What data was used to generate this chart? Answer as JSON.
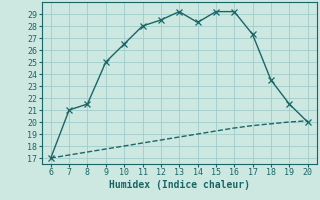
{
  "xlabel": "Humidex (Indice chaleur)",
  "x": [
    6,
    7,
    8,
    9,
    10,
    11,
    12,
    13,
    14,
    15,
    16,
    17,
    18,
    19,
    20
  ],
  "y_main": [
    17.0,
    21.0,
    21.5,
    25.0,
    26.5,
    28.0,
    28.5,
    29.2,
    28.3,
    29.2,
    29.2,
    27.3,
    23.5,
    21.5,
    20.0
  ],
  "y_ref": [
    17.0,
    17.25,
    17.5,
    17.75,
    18.0,
    18.25,
    18.5,
    18.75,
    19.0,
    19.25,
    19.5,
    19.7,
    19.85,
    20.0,
    20.1
  ],
  "xlim": [
    5.5,
    20.5
  ],
  "ylim": [
    16.5,
    30.0
  ],
  "yticks": [
    17,
    18,
    19,
    20,
    21,
    22,
    23,
    24,
    25,
    26,
    27,
    28,
    29
  ],
  "xticks": [
    6,
    7,
    8,
    9,
    10,
    11,
    12,
    13,
    14,
    15,
    16,
    17,
    18,
    19,
    20
  ],
  "bg_color": "#cce8e0",
  "grid_color": "#a0cccc",
  "line_color": "#1a6666",
  "marker": "x",
  "line_width": 1.0,
  "marker_size": 4,
  "tick_fontsize": 6.0,
  "xlabel_fontsize": 7.0
}
